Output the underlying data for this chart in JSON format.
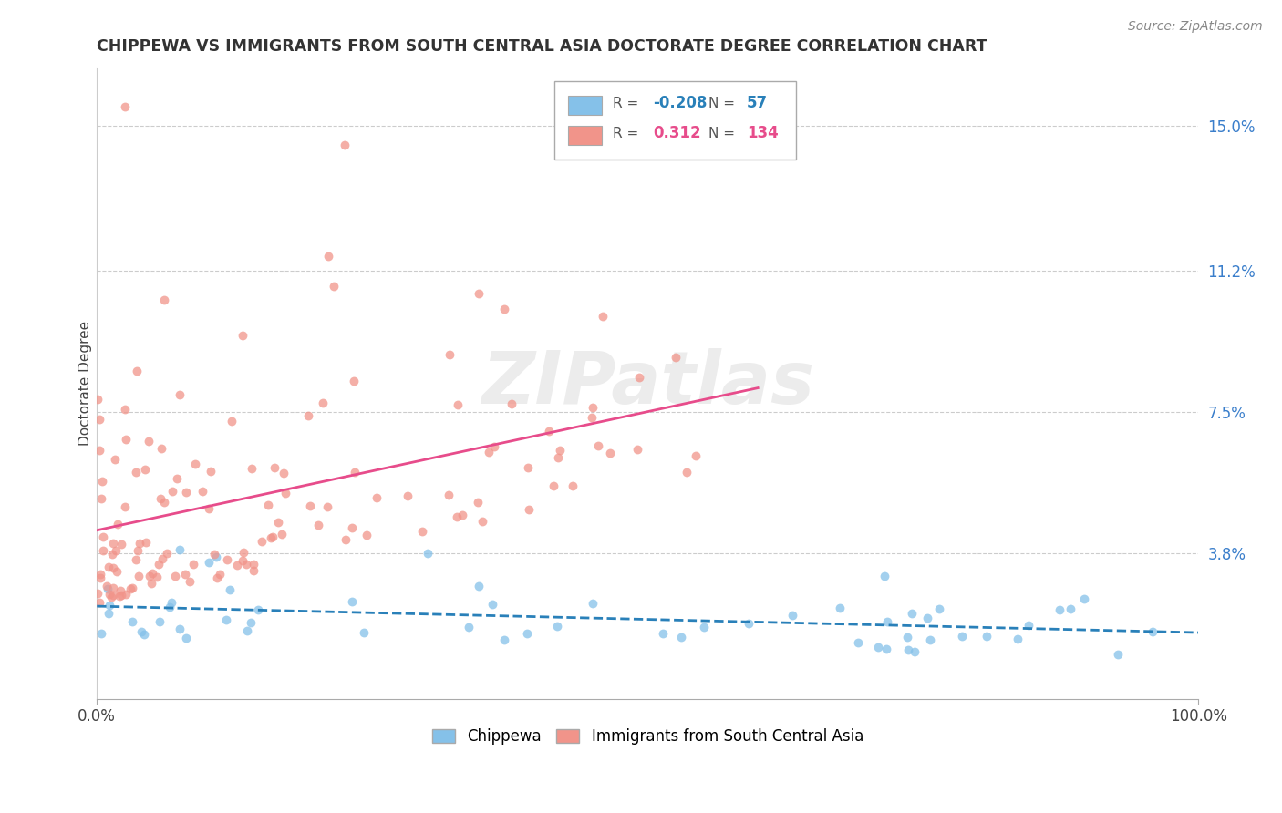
{
  "title": "CHIPPEWA VS IMMIGRANTS FROM SOUTH CENTRAL ASIA DOCTORATE DEGREE CORRELATION CHART",
  "source": "Source: ZipAtlas.com",
  "ylabel": "Doctorate Degree",
  "xlim": [
    0,
    1.0
  ],
  "ylim": [
    0,
    0.165
  ],
  "ytick_vals": [
    0.038,
    0.075,
    0.112,
    0.15
  ],
  "ytick_labels": [
    "3.8%",
    "7.5%",
    "11.2%",
    "15.0%"
  ],
  "xtick_vals": [
    0.0,
    1.0
  ],
  "xtick_labels": [
    "0.0%",
    "100.0%"
  ],
  "color_blue": "#85c1e9",
  "color_pink": "#f1948a",
  "color_blue_line": "#2980b9",
  "color_pink_line": "#e74c8b",
  "background_color": "#ffffff",
  "title_fontsize": 12.5,
  "axis_label_fontsize": 11,
  "tick_fontsize": 12,
  "source_fontsize": 10,
  "legend_r1_val": "-0.208",
  "legend_n1_val": "57",
  "legend_r2_val": "0.312",
  "legend_n2_val": "134",
  "watermark_text": "ZIPatlas",
  "watermark_fontsize": 58,
  "watermark_color": "#d0d0d0",
  "watermark_alpha": 0.4,
  "scatter_size": 50,
  "scatter_alpha": 0.75
}
